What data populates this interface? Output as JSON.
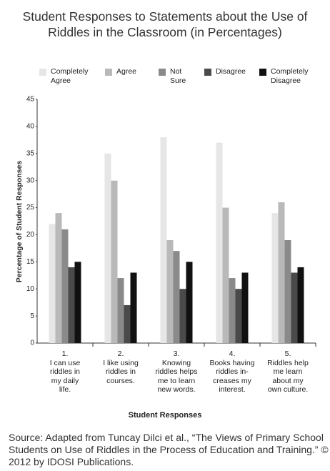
{
  "chart_data": {
    "type": "bar",
    "title": "Student Responses to Statements about the Use of Riddles in the Classroom (in Percentages)",
    "x_label": "Student Responses",
    "y_label": "Percentage of Student Responses",
    "categories": [
      [
        "1.",
        "I can use",
        "riddles in",
        "my daily",
        "life."
      ],
      [
        "2.",
        "I like using",
        "riddles in",
        "courses."
      ],
      [
        "3.",
        "Knowing",
        "riddles helps",
        "me to learn",
        "new words."
      ],
      [
        "4.",
        "Books having",
        "riddles in-",
        "creases my",
        "interest."
      ],
      [
        "5.",
        "Riddles help",
        "me learn",
        "about my",
        "own culture."
      ]
    ],
    "series": [
      {
        "name": "Completely Agree",
        "color": "#e6e6e6",
        "values": [
          22,
          35,
          38,
          37,
          24
        ]
      },
      {
        "name": "Agree",
        "color": "#b9b9b9",
        "values": [
          24,
          30,
          19,
          25,
          26
        ]
      },
      {
        "name": "Not Sure",
        "color": "#8a8a8a",
        "values": [
          21,
          12,
          17,
          12,
          19
        ]
      },
      {
        "name": "Disagree",
        "color": "#4a4a4a",
        "values": [
          14,
          7,
          10,
          10,
          13
        ]
      },
      {
        "name": "Completely Disagree",
        "color": "#111111",
        "values": [
          15,
          13,
          15,
          13,
          14
        ]
      }
    ],
    "ylim": [
      0,
      45
    ],
    "yticks": [
      0,
      5,
      10,
      15,
      20,
      25,
      30,
      35,
      40,
      45
    ],
    "grid": false,
    "source": "Source: Adapted from Tuncay Dilci et al., “The Views of Primary School Students on Use of Riddles in the Process of Education and Training.” © 2012 by IDOSI Publications."
  }
}
